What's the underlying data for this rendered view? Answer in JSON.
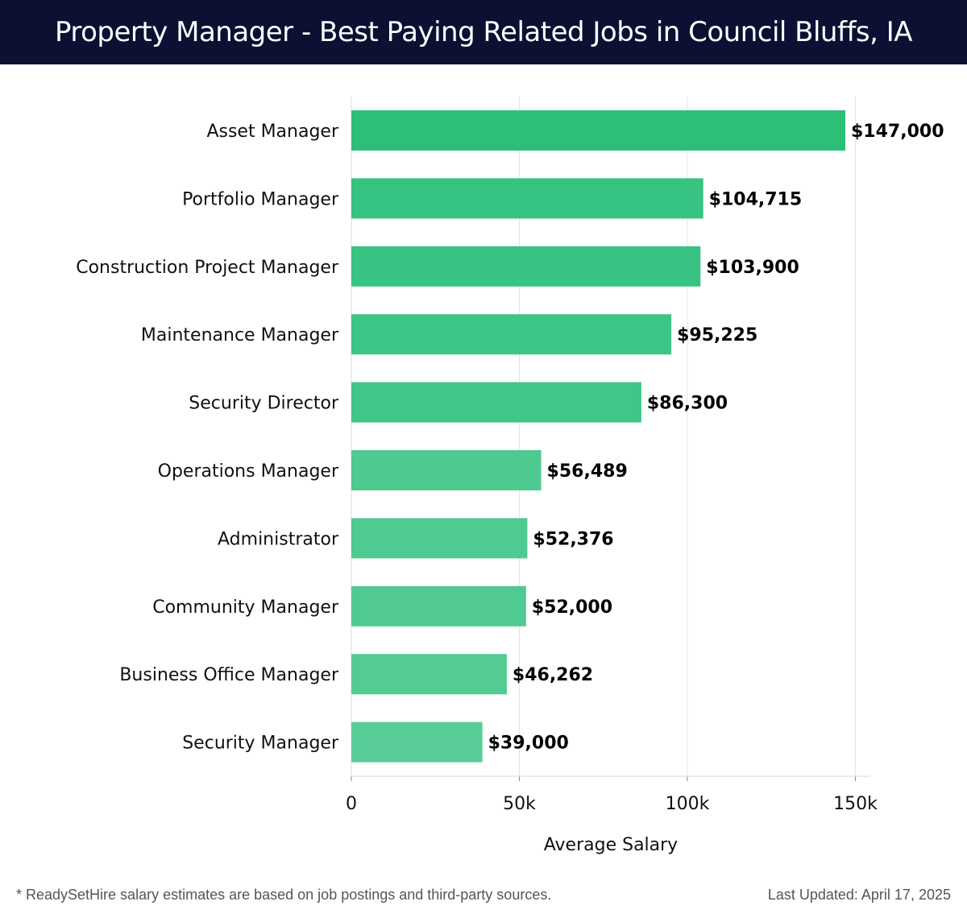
{
  "header": {
    "title": "Property Manager - Best Paying Related Jobs in Council Bluffs, IA"
  },
  "chart_data": {
    "type": "bar",
    "orientation": "horizontal",
    "title": "Property Manager - Best Paying Related Jobs in Council Bluffs, IA",
    "xlabel": "Average Salary",
    "ylabel": "",
    "xlim": [
      0,
      155000
    ],
    "x_ticks": [
      {
        "value": 0,
        "label": "0"
      },
      {
        "value": 50000,
        "label": "50k"
      },
      {
        "value": 100000,
        "label": "100k"
      },
      {
        "value": 150000,
        "label": "150k"
      }
    ],
    "grid": "vertical",
    "categories": [
      "Asset Manager",
      "Portfolio Manager",
      "Construction Project Manager",
      "Maintenance Manager",
      "Security Director",
      "Operations Manager",
      "Administrator",
      "Community Manager",
      "Business Office Manager",
      "Security Manager"
    ],
    "values": [
      147000,
      104715,
      103900,
      95225,
      86300,
      56489,
      52376,
      52000,
      46262,
      39000
    ],
    "value_labels": [
      "$147,000",
      "$104,715",
      "$103,900",
      "$95,225",
      "$86,300",
      "$56,489",
      "$52,376",
      "$52,000",
      "$46,262",
      "$39,000"
    ],
    "bar_colors": [
      "#2bbf78",
      "#36c280",
      "#38c382",
      "#3dc585",
      "#40c687",
      "#4ec98f",
      "#4fca90",
      "#50ca91",
      "#53cb93",
      "#58cd97"
    ]
  },
  "footer": {
    "note": "* ReadySetHire salary estimates are based on job postings and third-party sources.",
    "updated": "Last Updated: April 17, 2025"
  }
}
